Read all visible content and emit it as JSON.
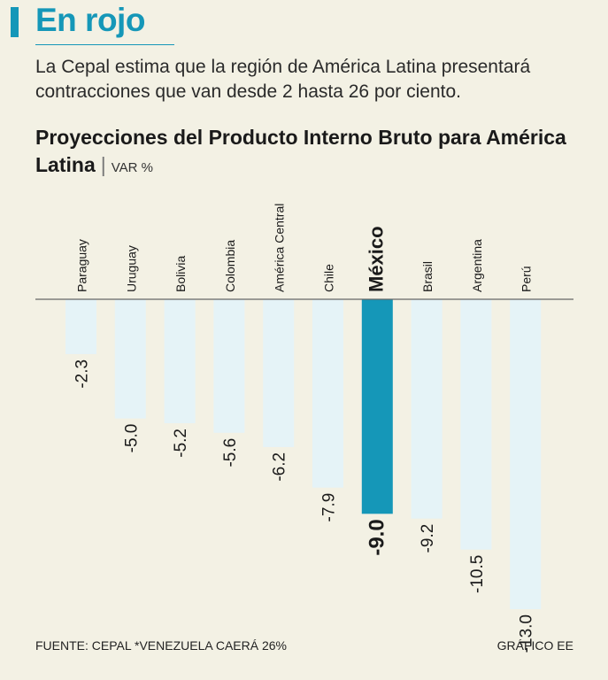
{
  "header": {
    "title": "En rojo",
    "subtitle": "La Cepal estima que la región de América Latina presentará contracciones que van desde 2 hasta 26 por ciento."
  },
  "chart_title": {
    "text": "Proyecciones del Producto Interno Bruto para América Latina",
    "unit": "VAR %"
  },
  "footer": {
    "source": "FUENTE: CEPAL *VENEZUELA CAERÁ 26%",
    "credit": "GRÁFICO EE"
  },
  "colors": {
    "bar": "#e5f3f7",
    "highlight": "#1597b8",
    "baseline": "#666666",
    "text": "#1a1a1a"
  },
  "chart_data": {
    "type": "bar",
    "orientation": "vertical-negative",
    "categories": [
      "Paraguay",
      "Uruguay",
      "Bolivia",
      "Colombia",
      "América Central",
      "Chile",
      "México",
      "Brasil",
      "Argentina",
      "Perú"
    ],
    "values": [
      -2.3,
      -5.0,
      -5.2,
      -5.6,
      -6.2,
      -7.9,
      -9.0,
      -9.2,
      -10.5,
      -13.0
    ],
    "value_labels": [
      "-2.3",
      "-5.0",
      "-5.2",
      "-5.6",
      "-6.2",
      "-7.9",
      "-9.0",
      "-9.2",
      "-10.5",
      "-13.0"
    ],
    "highlight": "México",
    "ylim": [
      -13.0,
      0
    ],
    "grid": false,
    "legend": "none"
  }
}
